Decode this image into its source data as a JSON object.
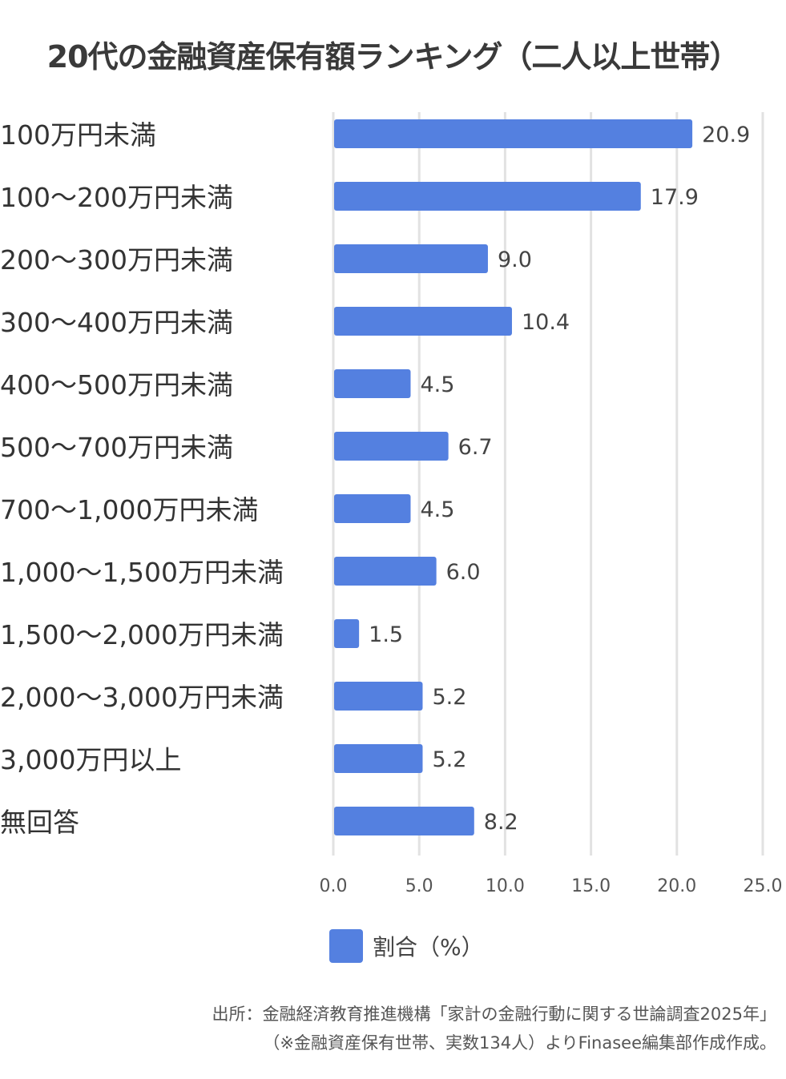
{
  "chart_data": {
    "type": "bar",
    "orientation": "horizontal",
    "title": "20代の金融資産保有額ランキング（二人以上世帯）",
    "categories": [
      "100万円未満",
      "100〜200万円未満",
      "200〜300万円未満",
      "300〜400万円未満",
      "400〜500万円未満",
      "500〜700万円未満",
      "700〜1,000万円未満",
      "1,000〜1,500万円未満",
      "1,500〜2,000万円未満",
      "2,000〜3,000万円未満",
      "3,000万円以上",
      "無回答"
    ],
    "series": [
      {
        "name": "割合（%）",
        "values": [
          20.9,
          17.9,
          9.0,
          10.4,
          4.5,
          6.7,
          4.5,
          6.0,
          1.5,
          5.2,
          5.2,
          8.2
        ]
      }
    ],
    "value_labels": [
      "20.9",
      "17.9",
      "9.0",
      "10.4",
      "4.5",
      "6.7",
      "4.5",
      "6.0",
      "1.5",
      "5.2",
      "5.2",
      "8.2"
    ],
    "xlim": [
      0,
      25
    ],
    "xticks": [
      0,
      5,
      10,
      15,
      20,
      25
    ],
    "xtick_labels": [
      "0.0",
      "5.0",
      "10.0",
      "15.0",
      "20.0",
      "25.0"
    ],
    "grid": true,
    "legend": "bottom",
    "color": "#5480e0"
  },
  "source": {
    "line1": "出所：金融経済教育推進機構「家計の金融行動に関する世論調査2025年」",
    "line2": "（※金融資産保有世帯、実数134人）よりFinasee編集部作成作成。"
  }
}
